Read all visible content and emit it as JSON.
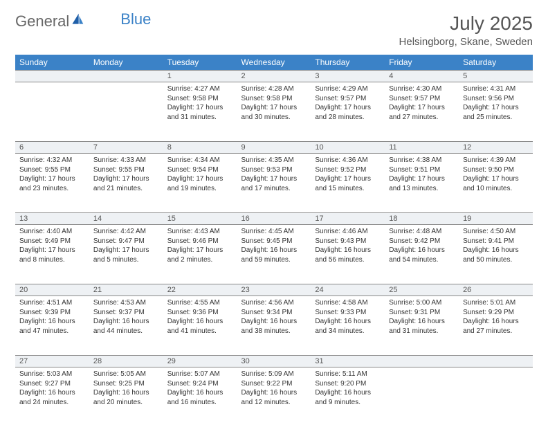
{
  "logo": {
    "text_left": "General",
    "text_right": "Blue",
    "icon": "sail-icon",
    "gray": "#777777",
    "blue": "#3b82c7"
  },
  "title": {
    "month": "July 2025",
    "location": "Helsingborg, Skane, Sweden"
  },
  "colors": {
    "header_bg": "#3b82c7",
    "header_fg": "#ffffff",
    "daynum_bg": "#eef1f4",
    "text": "#333333",
    "border": "#888888"
  },
  "weekdays": [
    "Sunday",
    "Monday",
    "Tuesday",
    "Wednesday",
    "Thursday",
    "Friday",
    "Saturday"
  ],
  "weeks": [
    {
      "days": [
        null,
        null,
        {
          "n": "1",
          "sunrise": "4:27 AM",
          "sunset": "9:58 PM",
          "daylight": "17 hours and 31 minutes."
        },
        {
          "n": "2",
          "sunrise": "4:28 AM",
          "sunset": "9:58 PM",
          "daylight": "17 hours and 30 minutes."
        },
        {
          "n": "3",
          "sunrise": "4:29 AM",
          "sunset": "9:57 PM",
          "daylight": "17 hours and 28 minutes."
        },
        {
          "n": "4",
          "sunrise": "4:30 AM",
          "sunset": "9:57 PM",
          "daylight": "17 hours and 27 minutes."
        },
        {
          "n": "5",
          "sunrise": "4:31 AM",
          "sunset": "9:56 PM",
          "daylight": "17 hours and 25 minutes."
        }
      ]
    },
    {
      "days": [
        {
          "n": "6",
          "sunrise": "4:32 AM",
          "sunset": "9:55 PM",
          "daylight": "17 hours and 23 minutes."
        },
        {
          "n": "7",
          "sunrise": "4:33 AM",
          "sunset": "9:55 PM",
          "daylight": "17 hours and 21 minutes."
        },
        {
          "n": "8",
          "sunrise": "4:34 AM",
          "sunset": "9:54 PM",
          "daylight": "17 hours and 19 minutes."
        },
        {
          "n": "9",
          "sunrise": "4:35 AM",
          "sunset": "9:53 PM",
          "daylight": "17 hours and 17 minutes."
        },
        {
          "n": "10",
          "sunrise": "4:36 AM",
          "sunset": "9:52 PM",
          "daylight": "17 hours and 15 minutes."
        },
        {
          "n": "11",
          "sunrise": "4:38 AM",
          "sunset": "9:51 PM",
          "daylight": "17 hours and 13 minutes."
        },
        {
          "n": "12",
          "sunrise": "4:39 AM",
          "sunset": "9:50 PM",
          "daylight": "17 hours and 10 minutes."
        }
      ]
    },
    {
      "days": [
        {
          "n": "13",
          "sunrise": "4:40 AM",
          "sunset": "9:49 PM",
          "daylight": "17 hours and 8 minutes."
        },
        {
          "n": "14",
          "sunrise": "4:42 AM",
          "sunset": "9:47 PM",
          "daylight": "17 hours and 5 minutes."
        },
        {
          "n": "15",
          "sunrise": "4:43 AM",
          "sunset": "9:46 PM",
          "daylight": "17 hours and 2 minutes."
        },
        {
          "n": "16",
          "sunrise": "4:45 AM",
          "sunset": "9:45 PM",
          "daylight": "16 hours and 59 minutes."
        },
        {
          "n": "17",
          "sunrise": "4:46 AM",
          "sunset": "9:43 PM",
          "daylight": "16 hours and 56 minutes."
        },
        {
          "n": "18",
          "sunrise": "4:48 AM",
          "sunset": "9:42 PM",
          "daylight": "16 hours and 54 minutes."
        },
        {
          "n": "19",
          "sunrise": "4:50 AM",
          "sunset": "9:41 PM",
          "daylight": "16 hours and 50 minutes."
        }
      ]
    },
    {
      "days": [
        {
          "n": "20",
          "sunrise": "4:51 AM",
          "sunset": "9:39 PM",
          "daylight": "16 hours and 47 minutes."
        },
        {
          "n": "21",
          "sunrise": "4:53 AM",
          "sunset": "9:37 PM",
          "daylight": "16 hours and 44 minutes."
        },
        {
          "n": "22",
          "sunrise": "4:55 AM",
          "sunset": "9:36 PM",
          "daylight": "16 hours and 41 minutes."
        },
        {
          "n": "23",
          "sunrise": "4:56 AM",
          "sunset": "9:34 PM",
          "daylight": "16 hours and 38 minutes."
        },
        {
          "n": "24",
          "sunrise": "4:58 AM",
          "sunset": "9:33 PM",
          "daylight": "16 hours and 34 minutes."
        },
        {
          "n": "25",
          "sunrise": "5:00 AM",
          "sunset": "9:31 PM",
          "daylight": "16 hours and 31 minutes."
        },
        {
          "n": "26",
          "sunrise": "5:01 AM",
          "sunset": "9:29 PM",
          "daylight": "16 hours and 27 minutes."
        }
      ]
    },
    {
      "days": [
        {
          "n": "27",
          "sunrise": "5:03 AM",
          "sunset": "9:27 PM",
          "daylight": "16 hours and 24 minutes."
        },
        {
          "n": "28",
          "sunrise": "5:05 AM",
          "sunset": "9:25 PM",
          "daylight": "16 hours and 20 minutes."
        },
        {
          "n": "29",
          "sunrise": "5:07 AM",
          "sunset": "9:24 PM",
          "daylight": "16 hours and 16 minutes."
        },
        {
          "n": "30",
          "sunrise": "5:09 AM",
          "sunset": "9:22 PM",
          "daylight": "16 hours and 12 minutes."
        },
        {
          "n": "31",
          "sunrise": "5:11 AM",
          "sunset": "9:20 PM",
          "daylight": "16 hours and 9 minutes."
        },
        null,
        null
      ]
    }
  ],
  "labels": {
    "sunrise": "Sunrise: ",
    "sunset": "Sunset: ",
    "daylight": "Daylight: "
  }
}
